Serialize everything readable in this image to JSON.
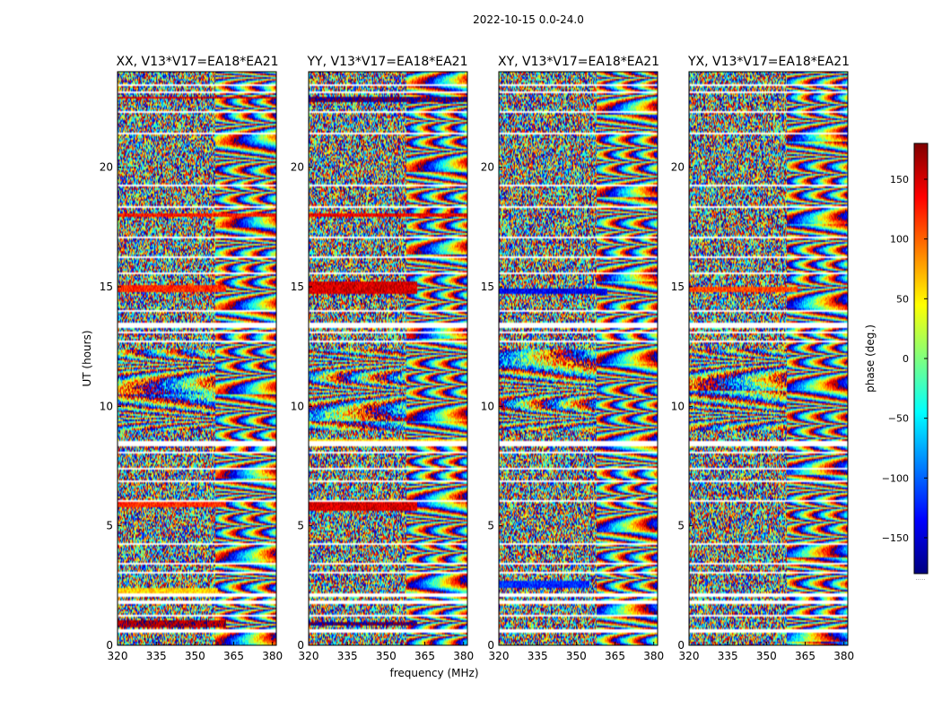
{
  "figure": {
    "suptitle": "2022-10-15 0.0-24.0"
  },
  "chart_data": {
    "type": "heatmap",
    "panels": [
      {
        "title": "XX, V13*V17=EA18*EA21"
      },
      {
        "title": "YY, V13*V17=EA18*EA21"
      },
      {
        "title": "XY, V13*V17=EA18*EA21"
      },
      {
        "title": "YX, V13*V17=EA18*EA21"
      }
    ],
    "xlabel": "frequency (MHz)",
    "ylabel": "UT (hours)",
    "xlim": [
      320,
      381.5
    ],
    "ylim": [
      0,
      24
    ],
    "x_ticks": [
      320,
      335,
      350,
      365,
      380
    ],
    "y_ticks": [
      0,
      5,
      10,
      15,
      20
    ],
    "colorbar": {
      "label": "phase (deg.)",
      "range": [
        -180,
        180
      ],
      "ticks": [
        150,
        100,
        50,
        0,
        -50,
        -100,
        -150
      ],
      "tick_labels": [
        "150",
        "100",
        "50",
        "0",
        "−50",
        "−100",
        "−150"
      ],
      "colormap": [
        "#00007f",
        "#0000ff",
        "#007fff",
        "#00ffff",
        "#7fff7f",
        "#ffff00",
        "#ff7f00",
        "#ff0000",
        "#7f0000"
      ],
      "footer_text": "....."
    },
    "flagged_bands_hours": [
      [
        0.55,
        0.65
      ],
      [
        1.2,
        1.3
      ],
      [
        1.75,
        1.85
      ],
      [
        2.05,
        2.15
      ],
      [
        3.35,
        3.42
      ],
      [
        3.0,
        3.05
      ],
      [
        4.2,
        4.28
      ],
      [
        6.0,
        6.08
      ],
      [
        6.85,
        6.92
      ],
      [
        7.35,
        7.42
      ],
      [
        8.0,
        8.08
      ],
      [
        8.35,
        8.55
      ],
      [
        12.7,
        12.78
      ],
      [
        13.05,
        13.12
      ],
      [
        13.3,
        13.5
      ],
      [
        13.95,
        14.02
      ],
      [
        14.3,
        14.36
      ],
      [
        15.55,
        15.62
      ],
      [
        16.2,
        16.28
      ],
      [
        17.0,
        17.08
      ],
      [
        17.6,
        17.66
      ],
      [
        18.3,
        18.36
      ],
      [
        19.2,
        19.26
      ],
      [
        20.6,
        20.66
      ],
      [
        21.35,
        21.42
      ],
      [
        22.3,
        22.36
      ],
      [
        23.1,
        23.2
      ],
      [
        23.4,
        23.48
      ]
    ],
    "coherent_regions": [
      {
        "panel": 0,
        "t_range": [
          0.75,
          1.05
        ],
        "f_range": [
          320,
          362
        ],
        "phase": 165
      },
      {
        "panel": 0,
        "t_range": [
          2.15,
          2.4
        ],
        "f_range": [
          320,
          359
        ],
        "phase": 60
      },
      {
        "panel": 0,
        "t_range": [
          5.8,
          6.0
        ],
        "f_range": [
          320,
          362
        ],
        "phase": 120
      },
      {
        "panel": 0,
        "t_range": [
          14.8,
          15.1
        ],
        "f_range": [
          320,
          362
        ],
        "phase": 120
      },
      {
        "panel": 0,
        "t_range": [
          17.9,
          18.05
        ],
        "f_range": [
          320,
          381.5
        ],
        "phase": 130
      },
      {
        "panel": 0,
        "t_range": [
          22.85,
          22.95
        ],
        "f_range": [
          320,
          381.5
        ],
        "phase": 150
      },
      {
        "panel": 1,
        "t_range": [
          0.8,
          1.0
        ],
        "f_range": [
          320,
          362
        ],
        "phase": -175
      },
      {
        "panel": 1,
        "t_range": [
          5.6,
          6.0
        ],
        "f_range": [
          320,
          362
        ],
        "phase": 150
      },
      {
        "panel": 1,
        "t_range": [
          14.7,
          15.2
        ],
        "f_range": [
          320,
          362
        ],
        "phase": 150
      },
      {
        "panel": 1,
        "t_range": [
          17.9,
          18.1
        ],
        "f_range": [
          320,
          381.5
        ],
        "phase": 140
      },
      {
        "panel": 1,
        "t_range": [
          22.75,
          22.95
        ],
        "f_range": [
          320,
          381.5
        ],
        "phase": -175
      },
      {
        "panel": 1,
        "t_range": [
          8.55,
          8.65
        ],
        "f_range": [
          320,
          381.5
        ],
        "phase": 60
      },
      {
        "panel": 2,
        "t_range": [
          14.7,
          14.95
        ],
        "f_range": [
          320,
          362
        ],
        "phase": -140
      },
      {
        "panel": 2,
        "t_range": [
          2.4,
          2.7
        ],
        "f_range": [
          320,
          355
        ],
        "phase": -120
      },
      {
        "panel": 3,
        "t_range": [
          14.8,
          15.0
        ],
        "f_range": [
          320,
          362
        ],
        "phase": 110
      }
    ]
  }
}
